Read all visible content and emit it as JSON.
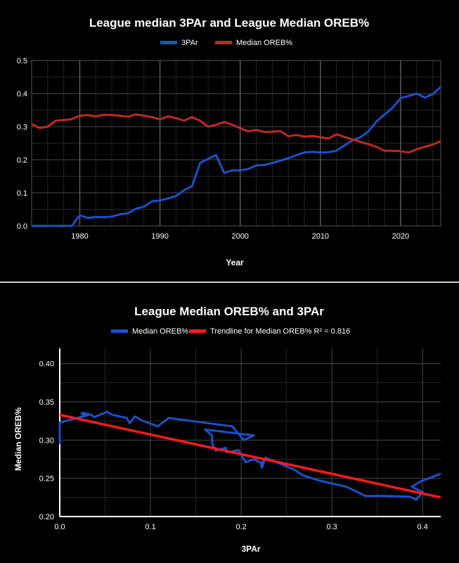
{
  "chart_data": [
    {
      "type": "line",
      "title": "League median 3PAr and League Median OREB%",
      "xlabel": "Year",
      "ylabel": "",
      "xlim": [
        1974,
        2025
      ],
      "ylim": [
        0,
        0.5
      ],
      "xticks": [
        1980,
        1990,
        2000,
        2010,
        2020
      ],
      "yticks": [
        0.0,
        0.1,
        0.2,
        0.3,
        0.4,
        0.5
      ],
      "ytick_labels": [
        "0.0",
        "0.1",
        "0.2",
        "0.3",
        "0.4",
        "0.5"
      ],
      "grid": true,
      "legend": "top-center",
      "x": [
        1974,
        1975,
        1976,
        1977,
        1978,
        1979,
        1980,
        1981,
        1982,
        1983,
        1984,
        1985,
        1986,
        1987,
        1988,
        1989,
        1990,
        1991,
        1992,
        1993,
        1994,
        1995,
        1996,
        1997,
        1998,
        1999,
        2000,
        2001,
        2002,
        2003,
        2004,
        2005,
        2006,
        2007,
        2008,
        2009,
        2010,
        2011,
        2012,
        2013,
        2014,
        2015,
        2016,
        2017,
        2018,
        2019,
        2020,
        2021,
        2022,
        2023,
        2024,
        2025
      ],
      "series": [
        {
          "name": "3PAr",
          "color": "#1f4fc4",
          "values": [
            0,
            0,
            0,
            0,
            0,
            0,
            0.032,
            0.024,
            0.027,
            0.026,
            0.028,
            0.035,
            0.038,
            0.052,
            0.058,
            0.074,
            0.077,
            0.083,
            0.09,
            0.108,
            0.12,
            0.19,
            0.203,
            0.214,
            0.16,
            0.168,
            0.168,
            0.172,
            0.183,
            0.184,
            0.19,
            0.197,
            0.205,
            0.214,
            0.222,
            0.224,
            0.222,
            0.223,
            0.227,
            0.243,
            0.259,
            0.268,
            0.286,
            0.316,
            0.337,
            0.357,
            0.386,
            0.393,
            0.4,
            0.388,
            0.398,
            0.42
          ]
        },
        {
          "name": "Median OREB%",
          "color": "#c0281e",
          "values": [
            0.308,
            0.296,
            0.3,
            0.318,
            0.32,
            0.323,
            0.333,
            0.335,
            0.331,
            0.336,
            0.335,
            0.333,
            0.33,
            0.337,
            0.333,
            0.329,
            0.322,
            0.331,
            0.326,
            0.318,
            0.329,
            0.318,
            0.3,
            0.306,
            0.314,
            0.306,
            0.295,
            0.286,
            0.29,
            0.284,
            0.285,
            0.287,
            0.271,
            0.275,
            0.27,
            0.272,
            0.268,
            0.264,
            0.277,
            0.269,
            0.261,
            0.254,
            0.247,
            0.239,
            0.227,
            0.227,
            0.226,
            0.222,
            0.232,
            0.239,
            0.246,
            0.256
          ]
        }
      ]
    },
    {
      "type": "scatter",
      "title": "League Median OREB% and  3PAr",
      "xlabel": "3PAr",
      "ylabel": "Median OREB%",
      "xlim": [
        0,
        0.42
      ],
      "ylim": [
        0.2,
        0.42
      ],
      "xticks": [
        0,
        0.1,
        0.2,
        0.3,
        0.4
      ],
      "xtick_labels": [
        "0.0",
        "0.1",
        "0.2",
        "0.3",
        "0.4"
      ],
      "yticks": [
        0.2,
        0.25,
        0.3,
        0.35,
        0.4
      ],
      "ytick_labels": [
        "0.20",
        "0.25",
        "0.30",
        "0.35",
        "0.40"
      ],
      "grid": true,
      "legend": "top-center",
      "series": [
        {
          "name": "Median OREB%",
          "color": "#1f4fc4",
          "mode": "connected"
        },
        {
          "name": "Trendline for Median OREB% R² = 0.816",
          "color": "#ff1a1a",
          "mode": "line",
          "x": [
            0,
            0.42
          ],
          "values": [
            0.333,
            0.225
          ]
        }
      ]
    }
  ]
}
